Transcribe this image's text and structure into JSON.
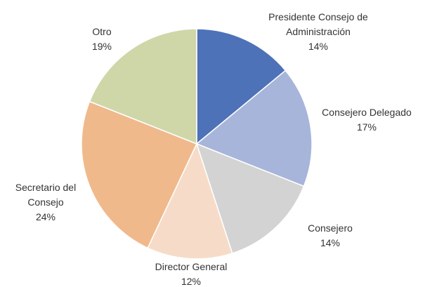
{
  "chart_data": {
    "type": "pie",
    "categories": [
      "Presidente Consejo de Administración",
      "Consejero Delegado",
      "Consejero",
      "Director General",
      "Secretario del Consejo",
      "Otro"
    ],
    "values": [
      14,
      17,
      14,
      12,
      24,
      19
    ],
    "value_labels": [
      "14%",
      "17%",
      "14%",
      "12%",
      "24%",
      "19%"
    ],
    "colors": [
      "#4e72b8",
      "#a7b5da",
      "#d3d3d3",
      "#f6dcc8",
      "#f0b98b",
      "#cfd7a9"
    ]
  }
}
